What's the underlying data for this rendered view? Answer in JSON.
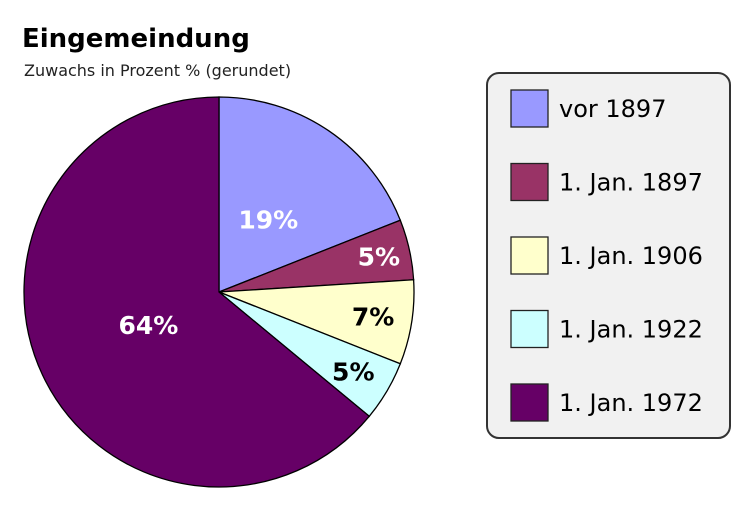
{
  "chart_data": {
    "type": "pie",
    "title": "Eingemeindung",
    "subtitle": "Zuwachs in Prozent % (gerundet)",
    "start_angle": "top",
    "direction": "clockwise",
    "legend_placement": "right",
    "slices": [
      {
        "label": "vor 1897",
        "value": 19,
        "data_label": "19%",
        "color": "#9999ff",
        "label_color": "#ffffff"
      },
      {
        "label": "1. Jan. 1897",
        "value": 5,
        "data_label": "5%",
        "color": "#993366",
        "label_color": "#ffffff"
      },
      {
        "label": "1. Jan. 1906",
        "value": 7,
        "data_label": "7%",
        "color": "#ffffcc",
        "label_color": "#000000"
      },
      {
        "label": "1. Jan. 1922",
        "value": 5,
        "data_label": "5%",
        "color": "#ccffff",
        "label_color": "#000000"
      },
      {
        "label": "1. Jan. 1972",
        "value": 64,
        "data_label": "64%",
        "color": "#660066",
        "label_color": "#ffffff"
      }
    ]
  }
}
